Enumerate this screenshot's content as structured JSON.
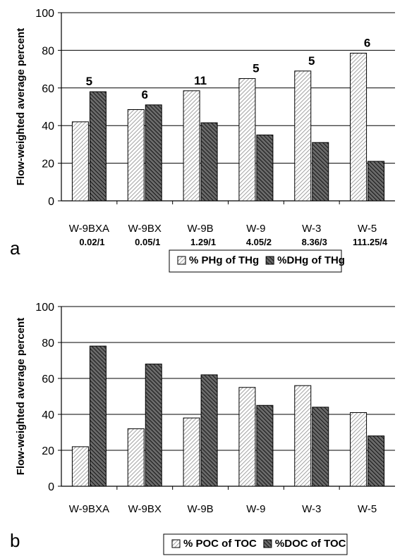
{
  "chart_data": [
    {
      "type": "bar",
      "panel_letter": "a",
      "ylabel": "Flow-weighted average percent",
      "ylim": [
        0,
        100
      ],
      "yticks": [
        0,
        20,
        40,
        60,
        80,
        100
      ],
      "grid": true,
      "categories": [
        "W-9BXA",
        "W-9BX",
        "W-9B",
        "W-9",
        "W-3",
        "W-5"
      ],
      "category_sublabels": [
        "0.02/1",
        "0.05/1",
        "1.29/1",
        "4.05/2",
        "8.36/3",
        "111.25/4"
      ],
      "annotations": [
        "5",
        "6",
        "11",
        "5",
        "5",
        "6"
      ],
      "series": [
        {
          "name": "% PHg of THg",
          "values": [
            42,
            48.5,
            58.5,
            65,
            69,
            78.5
          ],
          "pattern": "light-hatch"
        },
        {
          "name": "%DHg of THg",
          "values": [
            58,
            51,
            41.5,
            35,
            31,
            21
          ],
          "pattern": "dark-hatch"
        }
      ],
      "legend_position": "bottom"
    },
    {
      "type": "bar",
      "panel_letter": "b",
      "ylabel": "Flow-weighted average percent",
      "ylim": [
        0,
        100
      ],
      "yticks": [
        0,
        20,
        40,
        60,
        80,
        100
      ],
      "grid": true,
      "categories": [
        "W-9BXA",
        "W-9BX",
        "W-9B",
        "W-9",
        "W-3",
        "W-5"
      ],
      "series": [
        {
          "name": "% POC of TOC",
          "values": [
            22,
            32,
            38,
            55,
            56,
            41
          ],
          "pattern": "light-hatch"
        },
        {
          "name": "%DOC of TOC",
          "values": [
            78,
            68,
            62,
            45,
            44,
            28
          ],
          "pattern": "dark-hatch"
        }
      ],
      "legend_position": "bottom"
    }
  ]
}
